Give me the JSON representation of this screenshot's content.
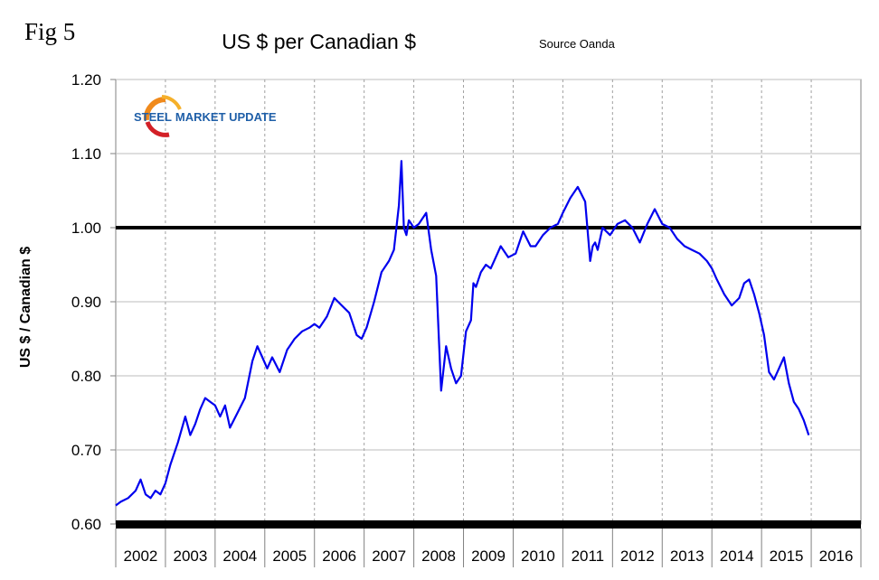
{
  "figure_label": "Fig 5",
  "logo": {
    "word1": "STEEL",
    "word2": "MARKET UPDATE"
  },
  "colors": {
    "line": "#0000ee",
    "reference": "#000000",
    "grid": "#bdbdbd",
    "vgrid": "#a0a0a0",
    "logo_blue": "#1f5fa8",
    "logo_orange": "#f08a1c",
    "logo_red": "#d32027"
  },
  "chart_data": {
    "type": "line",
    "title": "US $ per Canadian $",
    "subtitle": "Source Oanda",
    "xlabel": "",
    "ylabel": "US $ / Canadian $",
    "ylim": [
      0.6,
      1.2
    ],
    "xlim": [
      2002,
      2017
    ],
    "yticks": [
      "1.20",
      "1.10",
      "1.00",
      "0.90",
      "0.80",
      "0.70",
      "0.60"
    ],
    "ytick_values": [
      1.2,
      1.1,
      1.0,
      0.9,
      0.8,
      0.7,
      0.6
    ],
    "x_categories": [
      "2002",
      "2003",
      "2004",
      "2005",
      "2006",
      "2007",
      "2008",
      "2009",
      "2010",
      "2011",
      "2012",
      "2013",
      "2014",
      "2015",
      "2016"
    ],
    "reference_line": 1.0,
    "grid": true,
    "series": [
      {
        "name": "US $ per Canadian $",
        "x": [
          2002.0,
          2002.1,
          2002.25,
          2002.4,
          2002.5,
          2002.6,
          2002.7,
          2002.8,
          2002.9,
          2003.0,
          2003.1,
          2003.25,
          2003.4,
          2003.5,
          2003.6,
          2003.7,
          2003.8,
          2003.9,
          2004.0,
          2004.1,
          2004.2,
          2004.3,
          2004.45,
          2004.6,
          2004.75,
          2004.85,
          2004.95,
          2005.05,
          2005.15,
          2005.3,
          2005.45,
          2005.6,
          2005.75,
          2005.9,
          2006.0,
          2006.1,
          2006.25,
          2006.4,
          2006.55,
          2006.7,
          2006.85,
          2006.95,
          2007.05,
          2007.2,
          2007.35,
          2007.5,
          2007.6,
          2007.7,
          2007.75,
          2007.8,
          2007.85,
          2007.9,
          2008.0,
          2008.1,
          2008.25,
          2008.35,
          2008.45,
          2008.55,
          2008.65,
          2008.75,
          2008.85,
          2008.95,
          2009.05,
          2009.15,
          2009.2,
          2009.25,
          2009.35,
          2009.45,
          2009.55,
          2009.65,
          2009.75,
          2009.9,
          2010.05,
          2010.2,
          2010.35,
          2010.45,
          2010.6,
          2010.75,
          2010.9,
          2011.0,
          2011.15,
          2011.3,
          2011.45,
          2011.55,
          2011.6,
          2011.65,
          2011.7,
          2011.8,
          2011.95,
          2012.1,
          2012.25,
          2012.4,
          2012.55,
          2012.7,
          2012.85,
          2013.0,
          2013.15,
          2013.3,
          2013.45,
          2013.6,
          2013.75,
          2013.9,
          2014.0,
          2014.1,
          2014.25,
          2014.4,
          2014.55,
          2014.65,
          2014.75,
          2014.85,
          2014.95,
          2015.05,
          2015.15,
          2015.25,
          2015.35,
          2015.45,
          2015.55,
          2015.65,
          2015.75,
          2015.85,
          2015.95
        ],
        "values": [
          0.625,
          0.63,
          0.635,
          0.645,
          0.66,
          0.64,
          0.635,
          0.645,
          0.64,
          0.655,
          0.68,
          0.71,
          0.745,
          0.72,
          0.735,
          0.755,
          0.77,
          0.765,
          0.76,
          0.745,
          0.76,
          0.73,
          0.75,
          0.77,
          0.82,
          0.84,
          0.825,
          0.81,
          0.825,
          0.805,
          0.835,
          0.85,
          0.86,
          0.865,
          0.87,
          0.865,
          0.88,
          0.905,
          0.895,
          0.885,
          0.855,
          0.85,
          0.865,
          0.9,
          0.94,
          0.955,
          0.97,
          1.03,
          1.09,
          1.0,
          0.99,
          1.01,
          1.0,
          1.005,
          1.02,
          0.97,
          0.935,
          0.78,
          0.84,
          0.81,
          0.79,
          0.8,
          0.86,
          0.875,
          0.925,
          0.92,
          0.94,
          0.95,
          0.945,
          0.96,
          0.975,
          0.96,
          0.965,
          0.995,
          0.975,
          0.975,
          0.99,
          1.0,
          1.005,
          1.02,
          1.04,
          1.055,
          1.035,
          0.955,
          0.975,
          0.98,
          0.97,
          1.0,
          0.99,
          1.005,
          1.01,
          1.0,
          0.98,
          1.005,
          1.025,
          1.005,
          1.0,
          0.985,
          0.975,
          0.97,
          0.965,
          0.955,
          0.945,
          0.93,
          0.91,
          0.895,
          0.905,
          0.925,
          0.93,
          0.91,
          0.885,
          0.855,
          0.805,
          0.795,
          0.81,
          0.825,
          0.79,
          0.765,
          0.755,
          0.74,
          0.72
        ]
      }
    ]
  }
}
